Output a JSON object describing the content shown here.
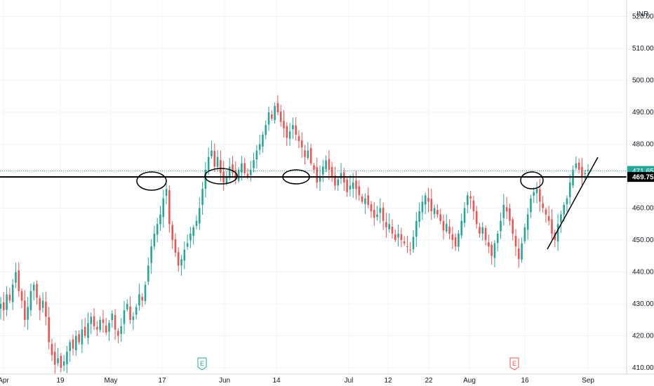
{
  "chart_data": {
    "type": "candlestick",
    "currency": "INR",
    "ylim": [
      410,
      522
    ],
    "y_ticks": [
      410,
      420,
      430,
      440,
      450,
      460,
      470,
      480,
      490,
      500,
      510,
      520
    ],
    "y_tick_labels": [
      "410.00",
      "420.00",
      "430.00",
      "440.00",
      "450.00",
      "460.00",
      "470.00",
      "480.00",
      "490.00",
      "500.00",
      "510.00",
      "520.00"
    ],
    "x_tick_labels": [
      "Apr",
      "19",
      "May",
      "17",
      "Jun",
      "14",
      "Jul",
      "12",
      "22",
      "Aug",
      "16",
      "Sep"
    ],
    "last_price": {
      "value": 471.65,
      "label": "471.65",
      "color": "#26a69a"
    },
    "support_level": {
      "value": 469.75,
      "label": "469.75",
      "color": "#000000"
    },
    "earnings_markers": [
      {
        "label": "E",
        "color": "#26a69a"
      },
      {
        "label": "E",
        "color": "#ef5350"
      }
    ],
    "series": [
      {
        "close": [
          430,
          428,
          433,
          431,
          436,
          440,
          434,
          431,
          425,
          429,
          434,
          436,
          432,
          428,
          431,
          426,
          418,
          414,
          411,
          413,
          410,
          412,
          415,
          418,
          416,
          420,
          418,
          422,
          420,
          424,
          426,
          423,
          422,
          425,
          424,
          421,
          424,
          427,
          422,
          420,
          423,
          428,
          430,
          425,
          426,
          429,
          433,
          431,
          436,
          442,
          448,
          452,
          455,
          458,
          463,
          466,
          455,
          450,
          446,
          442,
          444,
          447,
          449,
          452,
          454,
          456,
          460,
          466,
          472,
          476,
          478,
          473,
          476,
          471,
          468,
          470,
          473,
          471,
          469,
          472,
          474,
          471,
          470,
          472,
          475,
          478,
          480,
          483,
          486,
          490,
          488,
          492,
          490,
          487,
          485,
          482,
          484,
          486,
          483,
          481,
          479,
          476,
          478,
          474,
          472,
          468,
          470,
          473,
          475,
          472,
          470,
          467,
          469,
          471,
          468,
          465,
          467,
          468,
          466,
          464,
          462,
          463,
          461,
          459,
          457,
          458,
          460,
          456,
          454,
          455,
          452,
          450,
          452,
          450,
          449,
          448,
          447,
          451,
          456,
          459,
          462,
          464,
          462,
          459,
          460,
          458,
          456,
          453,
          455,
          452,
          450,
          448,
          452,
          456,
          460,
          464,
          463,
          459,
          455,
          452,
          454,
          450,
          448,
          445,
          449,
          452,
          456,
          461,
          459,
          456,
          452,
          448,
          444,
          449,
          454,
          458,
          463,
          465,
          466,
          462,
          460,
          458,
          456,
          452,
          450,
          455,
          458,
          461,
          463,
          468,
          472,
          474,
          472,
          470,
          471,
          472
        ]
      }
    ]
  }
}
